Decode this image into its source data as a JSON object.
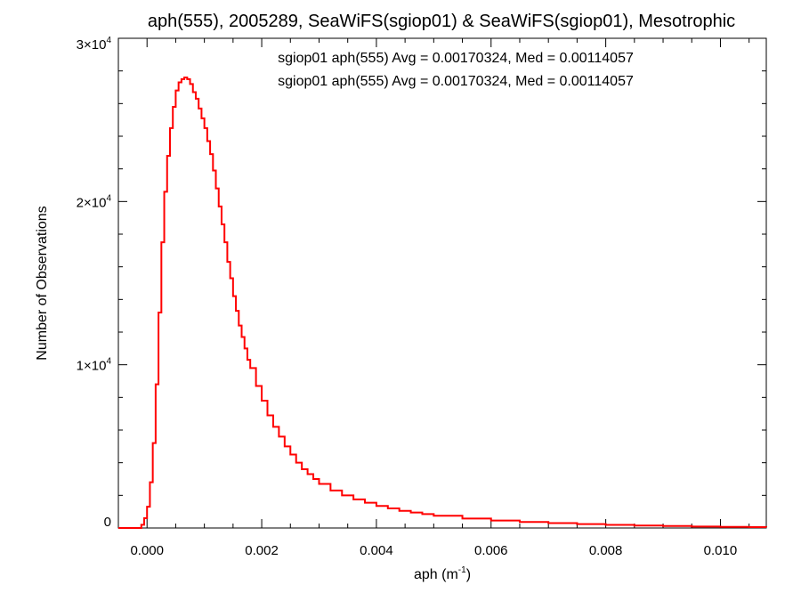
{
  "chart_data": {
    "type": "histogram",
    "title": "aph(555), 2005289, SeaWiFS(sgiop01) & SeaWiFS(sgiop01), Mesotrophic",
    "xlabel": {
      "base": "aph (m",
      "sup": "-1",
      "close": ")"
    },
    "ylabel": "Number of Observations",
    "xlim": [
      -0.0005,
      0.0108
    ],
    "ylim": [
      0,
      30000
    ],
    "x_ticks": [
      {
        "value": 0.0,
        "label": "0.000"
      },
      {
        "value": 0.002,
        "label": "0.002"
      },
      {
        "value": 0.004,
        "label": "0.004"
      },
      {
        "value": 0.006,
        "label": "0.006"
      },
      {
        "value": 0.008,
        "label": "0.008"
      },
      {
        "value": 0.01,
        "label": "0.010"
      }
    ],
    "y_ticks": [
      {
        "value": 0,
        "mant": "0",
        "exp": ""
      },
      {
        "value": 10000,
        "mant": "1×10",
        "exp": "4"
      },
      {
        "value": 20000,
        "mant": "2×10",
        "exp": "4"
      },
      {
        "value": 30000,
        "mant": "3×10",
        "exp": "4"
      }
    ],
    "annotations": [
      {
        "text": "sgiop01 aph(555) Avg = 0.00170324, Med = 0.00114057",
        "color": "#000000"
      },
      {
        "text": "sgiop01 aph(555) Avg = 0.00170324, Med = 0.00114057",
        "color": "#ff0000"
      }
    ],
    "colors": {
      "series_1": "#000000",
      "series_2": "#ff0000",
      "axes": "#000000"
    },
    "grid": false,
    "series": [
      {
        "name": "sgiop01",
        "color": "#ff0000",
        "points": [
          [
            -0.0005,
            0
          ],
          [
            -0.00015,
            0
          ],
          [
            -0.0001,
            200
          ],
          [
            -5e-05,
            600
          ],
          [
            0.0,
            1300
          ],
          [
            5e-05,
            2800
          ],
          [
            0.0001,
            5200
          ],
          [
            0.00015,
            8800
          ],
          [
            0.0002,
            13200
          ],
          [
            0.00025,
            17500
          ],
          [
            0.0003,
            20600
          ],
          [
            0.00035,
            22800
          ],
          [
            0.0004,
            24500
          ],
          [
            0.00045,
            25800
          ],
          [
            0.0005,
            26800
          ],
          [
            0.00055,
            27300
          ],
          [
            0.0006,
            27500
          ],
          [
            0.00065,
            27600
          ],
          [
            0.0007,
            27500
          ],
          [
            0.00075,
            27200
          ],
          [
            0.0008,
            26700
          ],
          [
            0.00085,
            26300
          ],
          [
            0.0009,
            25700
          ],
          [
            0.00095,
            25100
          ],
          [
            0.001,
            24500
          ],
          [
            0.00105,
            23700
          ],
          [
            0.0011,
            22900
          ],
          [
            0.00115,
            21900
          ],
          [
            0.0012,
            20800
          ],
          [
            0.00125,
            19700
          ],
          [
            0.0013,
            18600
          ],
          [
            0.00135,
            17500
          ],
          [
            0.0014,
            16300
          ],
          [
            0.00145,
            15300
          ],
          [
            0.0015,
            14200
          ],
          [
            0.00155,
            13300
          ],
          [
            0.0016,
            12400
          ],
          [
            0.00165,
            11700
          ],
          [
            0.0017,
            11000
          ],
          [
            0.00175,
            10300
          ],
          [
            0.0018,
            9800
          ],
          [
            0.0019,
            8700
          ],
          [
            0.002,
            7800
          ],
          [
            0.0021,
            6900
          ],
          [
            0.0022,
            6200
          ],
          [
            0.0023,
            5600
          ],
          [
            0.0024,
            5000
          ],
          [
            0.0025,
            4500
          ],
          [
            0.0026,
            4000
          ],
          [
            0.0027,
            3600
          ],
          [
            0.0028,
            3300
          ],
          [
            0.0029,
            3000
          ],
          [
            0.003,
            2700
          ],
          [
            0.0032,
            2300
          ],
          [
            0.0034,
            2000
          ],
          [
            0.0036,
            1750
          ],
          [
            0.0038,
            1550
          ],
          [
            0.004,
            1350
          ],
          [
            0.0042,
            1200
          ],
          [
            0.0044,
            1050
          ],
          [
            0.0046,
            950
          ],
          [
            0.0048,
            850
          ],
          [
            0.005,
            750
          ],
          [
            0.0055,
            580
          ],
          [
            0.006,
            460
          ],
          [
            0.0065,
            370
          ],
          [
            0.007,
            300
          ],
          [
            0.0075,
            240
          ],
          [
            0.008,
            190
          ],
          [
            0.0085,
            150
          ],
          [
            0.009,
            120
          ],
          [
            0.0095,
            90
          ],
          [
            0.01,
            70
          ],
          [
            0.0105,
            55
          ],
          [
            0.0108,
            50
          ]
        ]
      }
    ]
  }
}
